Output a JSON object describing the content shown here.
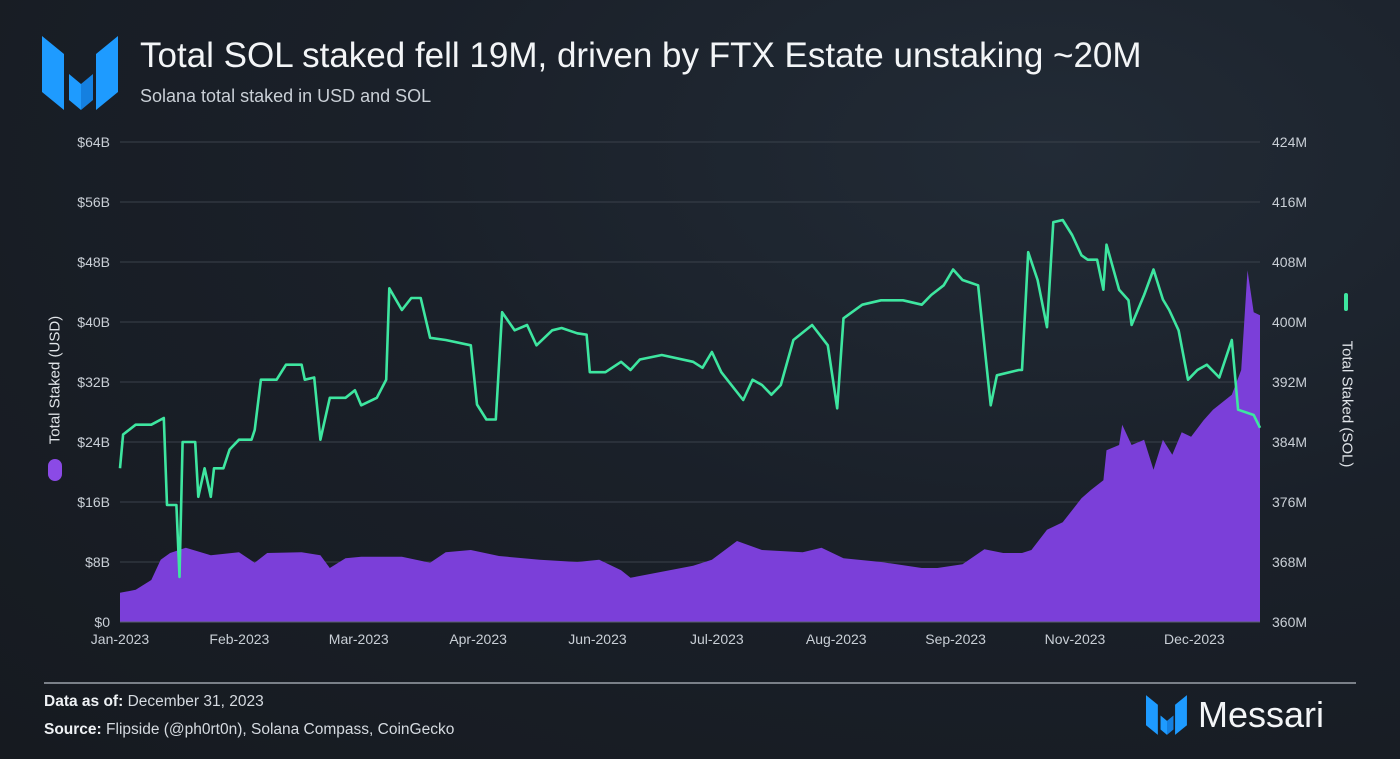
{
  "header": {
    "title": "Total SOL staked fell 19M, driven by FTX Estate unstaking ~20M",
    "subtitle": "Solana total staked in USD and SOL",
    "logo_icon": "messari-logo-icon"
  },
  "footer": {
    "as_of_label": "Data as of:",
    "as_of_value": "December 31, 2023",
    "source_label": "Source:",
    "source_value": "Flipside (@ph0rt0n), Solana Compass, CoinGecko",
    "brand": "Messari"
  },
  "colors": {
    "sol_line": "#3ee6a0",
    "usd_area": "#7b3fd9",
    "brand_blue": "#1e9bff"
  },
  "chart_data": {
    "type": "area+line",
    "title": "Total SOL staked fell 19M, driven by FTX Estate unstaking ~20M",
    "subtitle": "Solana total staked in USD and SOL",
    "x_range": [
      "2023-01-01",
      "2023-12-31"
    ],
    "x_ticks": [
      "Jan-2023",
      "Feb-2023",
      "Mar-2023",
      "Apr-2023",
      "Jun-2023",
      "Jul-2023",
      "Aug-2023",
      "Sep-2023",
      "Nov-2023",
      "Dec-2023"
    ],
    "y_left": {
      "label": "Total Staked (USD)",
      "range": [
        0,
        64
      ],
      "unit": "B USD",
      "ticks": [
        "$0",
        "$8B",
        "$16B",
        "$24B",
        "$32B",
        "$40B",
        "$48B",
        "$56B",
        "$64B"
      ]
    },
    "y_right": {
      "label": "Total Staked (SOL)",
      "range": [
        360,
        424
      ],
      "unit": "M SOL",
      "ticks": [
        "360M",
        "368M",
        "376M",
        "384M",
        "392M",
        "400M",
        "408M",
        "416M",
        "424M"
      ]
    },
    "grid": true,
    "legend": "axis-labels",
    "series": [
      {
        "name": "Total Staked (USD)",
        "type": "area",
        "axis": "left",
        "color": "#7b3fd9",
        "points": [
          [
            "2023-01-01",
            3.9
          ],
          [
            "2023-01-06",
            4.3
          ],
          [
            "2023-01-11",
            5.6
          ],
          [
            "2023-01-14",
            8.3
          ],
          [
            "2023-01-17",
            9.2
          ],
          [
            "2023-01-22",
            9.9
          ],
          [
            "2023-01-30",
            8.9
          ],
          [
            "2023-02-08",
            9.3
          ],
          [
            "2023-02-13",
            7.9
          ],
          [
            "2023-02-17",
            9.2
          ],
          [
            "2023-02-28",
            9.3
          ],
          [
            "2023-03-06",
            8.9
          ],
          [
            "2023-03-09",
            7.2
          ],
          [
            "2023-03-14",
            8.5
          ],
          [
            "2023-03-19",
            8.7
          ],
          [
            "2023-04-01",
            8.7
          ],
          [
            "2023-04-10",
            7.9
          ],
          [
            "2023-04-15",
            9.3
          ],
          [
            "2023-04-23",
            9.6
          ],
          [
            "2023-05-02",
            8.8
          ],
          [
            "2023-05-15",
            8.3
          ],
          [
            "2023-05-27",
            8.0
          ],
          [
            "2023-06-03",
            8.3
          ],
          [
            "2023-06-10",
            6.9
          ],
          [
            "2023-06-13",
            5.9
          ],
          [
            "2023-06-23",
            6.7
          ],
          [
            "2023-07-03",
            7.5
          ],
          [
            "2023-07-09",
            8.3
          ],
          [
            "2023-07-17",
            10.8
          ],
          [
            "2023-07-25",
            9.6
          ],
          [
            "2023-08-07",
            9.3
          ],
          [
            "2023-08-13",
            9.9
          ],
          [
            "2023-08-20",
            8.5
          ],
          [
            "2023-09-01",
            8.0
          ],
          [
            "2023-09-14",
            7.2
          ],
          [
            "2023-09-19",
            7.2
          ],
          [
            "2023-09-27",
            7.7
          ],
          [
            "2023-10-04",
            9.7
          ],
          [
            "2023-10-10",
            9.2
          ],
          [
            "2023-10-16",
            9.2
          ],
          [
            "2023-10-19",
            9.6
          ],
          [
            "2023-10-24",
            12.3
          ],
          [
            "2023-10-29",
            13.3
          ],
          [
            "2023-11-04",
            16.5
          ],
          [
            "2023-11-07",
            17.6
          ],
          [
            "2023-11-11",
            18.9
          ],
          [
            "2023-11-12",
            22.9
          ],
          [
            "2023-11-16",
            23.6
          ],
          [
            "2023-11-17",
            26.3
          ],
          [
            "2023-11-20",
            23.6
          ],
          [
            "2023-11-24",
            24.3
          ],
          [
            "2023-11-27",
            20.3
          ],
          [
            "2023-11-30",
            24.3
          ],
          [
            "2023-12-03",
            22.3
          ],
          [
            "2023-12-06",
            25.3
          ],
          [
            "2023-12-09",
            24.7
          ],
          [
            "2023-12-13",
            26.9
          ],
          [
            "2023-12-16",
            28.3
          ],
          [
            "2023-12-22",
            30.3
          ],
          [
            "2023-12-25",
            33.6
          ],
          [
            "2023-12-27",
            46.9
          ],
          [
            "2023-12-29",
            41.3
          ],
          [
            "2023-12-31",
            40.9
          ]
        ]
      },
      {
        "name": "Total Staked (SOL)",
        "type": "line",
        "axis": "right",
        "color": "#3ee6a0",
        "points": [
          [
            "2023-01-01",
            380.5
          ],
          [
            "2023-01-02",
            385
          ],
          [
            "2023-01-06",
            386.3
          ],
          [
            "2023-01-11",
            386.3
          ],
          [
            "2023-01-15",
            387.2
          ],
          [
            "2023-01-16",
            375.6
          ],
          [
            "2023-01-19",
            375.6
          ],
          [
            "2023-01-20",
            366
          ],
          [
            "2023-01-21",
            384
          ],
          [
            "2023-01-25",
            384
          ],
          [
            "2023-01-26",
            376.7
          ],
          [
            "2023-01-28",
            380.5
          ],
          [
            "2023-01-30",
            376.7
          ],
          [
            "2023-01-31",
            380.5
          ],
          [
            "2023-02-03",
            380.5
          ],
          [
            "2023-02-05",
            383
          ],
          [
            "2023-02-08",
            384.3
          ],
          [
            "2023-02-12",
            384.3
          ],
          [
            "2023-02-13",
            385.6
          ],
          [
            "2023-02-15",
            392.3
          ],
          [
            "2023-02-20",
            392.3
          ],
          [
            "2023-02-23",
            394.3
          ],
          [
            "2023-02-28",
            394.3
          ],
          [
            "2023-03-01",
            392.3
          ],
          [
            "2023-03-04",
            392.6
          ],
          [
            "2023-03-06",
            384.3
          ],
          [
            "2023-03-09",
            389.9
          ],
          [
            "2023-03-14",
            389.9
          ],
          [
            "2023-03-17",
            390.9
          ],
          [
            "2023-03-19",
            388.9
          ],
          [
            "2023-03-24",
            389.9
          ],
          [
            "2023-03-27",
            392.3
          ],
          [
            "2023-03-28",
            404.5
          ],
          [
            "2023-04-01",
            401.6
          ],
          [
            "2023-04-04",
            403.2
          ],
          [
            "2023-04-07",
            403.2
          ],
          [
            "2023-04-10",
            397.9
          ],
          [
            "2023-04-15",
            397.6
          ],
          [
            "2023-04-23",
            396.9
          ],
          [
            "2023-04-25",
            389
          ],
          [
            "2023-04-28",
            387
          ],
          [
            "2023-05-01",
            387
          ],
          [
            "2023-05-03",
            401.3
          ],
          [
            "2023-05-07",
            398.9
          ],
          [
            "2023-05-11",
            399.6
          ],
          [
            "2023-05-14",
            396.9
          ],
          [
            "2023-05-19",
            398.9
          ],
          [
            "2023-05-22",
            399.2
          ],
          [
            "2023-05-27",
            398.5
          ],
          [
            "2023-05-30",
            398.3
          ],
          [
            "2023-05-31",
            393.3
          ],
          [
            "2023-06-05",
            393.3
          ],
          [
            "2023-06-10",
            394.7
          ],
          [
            "2023-06-13",
            393.6
          ],
          [
            "2023-06-16",
            395
          ],
          [
            "2023-06-23",
            395.6
          ],
          [
            "2023-07-03",
            394.7
          ],
          [
            "2023-07-06",
            393.9
          ],
          [
            "2023-07-09",
            396
          ],
          [
            "2023-07-12",
            393.3
          ],
          [
            "2023-07-19",
            389.6
          ],
          [
            "2023-07-22",
            392.3
          ],
          [
            "2023-07-25",
            391.6
          ],
          [
            "2023-07-28",
            390.3
          ],
          [
            "2023-07-31",
            391.6
          ],
          [
            "2023-08-04",
            397.6
          ],
          [
            "2023-08-10",
            399.6
          ],
          [
            "2023-08-15",
            396.9
          ],
          [
            "2023-08-18",
            388.5
          ],
          [
            "2023-08-20",
            400.5
          ],
          [
            "2023-08-26",
            402.3
          ],
          [
            "2023-09-01",
            402.9
          ],
          [
            "2023-09-08",
            402.9
          ],
          [
            "2023-09-14",
            402.3
          ],
          [
            "2023-09-17",
            403.6
          ],
          [
            "2023-09-21",
            404.9
          ],
          [
            "2023-09-24",
            407
          ],
          [
            "2023-09-27",
            405.6
          ],
          [
            "2023-10-02",
            404.9
          ],
          [
            "2023-10-06",
            388.9
          ],
          [
            "2023-10-08",
            392.9
          ],
          [
            "2023-10-15",
            393.6
          ],
          [
            "2023-10-16",
            393.6
          ],
          [
            "2023-10-18",
            409.3
          ],
          [
            "2023-10-21",
            405.6
          ],
          [
            "2023-10-24",
            399.3
          ],
          [
            "2023-10-26",
            413.3
          ],
          [
            "2023-10-29",
            413.6
          ],
          [
            "2023-11-01",
            411.6
          ],
          [
            "2023-11-04",
            408.9
          ],
          [
            "2023-11-06",
            408.3
          ],
          [
            "2023-11-09",
            408.3
          ],
          [
            "2023-11-11",
            404.3
          ],
          [
            "2023-11-12",
            410.3
          ],
          [
            "2023-11-16",
            404.3
          ],
          [
            "2023-11-19",
            402.9
          ],
          [
            "2023-11-20",
            399.6
          ],
          [
            "2023-11-24",
            403.6
          ],
          [
            "2023-11-27",
            407
          ],
          [
            "2023-11-30",
            403
          ],
          [
            "2023-12-02",
            401.6
          ],
          [
            "2023-12-05",
            398.9
          ],
          [
            "2023-12-08",
            392.3
          ],
          [
            "2023-12-11",
            393.6
          ],
          [
            "2023-12-14",
            394.3
          ],
          [
            "2023-12-18",
            392.6
          ],
          [
            "2023-12-22",
            397.6
          ],
          [
            "2023-12-24",
            388.3
          ],
          [
            "2023-12-29",
            387.6
          ],
          [
            "2023-12-31",
            385.9
          ]
        ]
      }
    ]
  }
}
